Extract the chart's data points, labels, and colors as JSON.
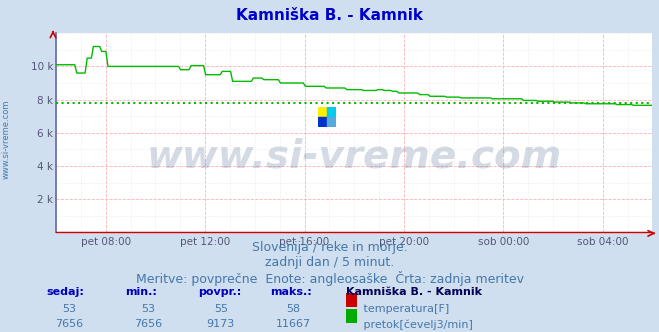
{
  "title": "Kamniška B. - Kamnik",
  "title_color": "#0000cc",
  "bg_color": "#d0dff0",
  "plot_bg_color": "#ffffff",
  "grid_color_red": "#ffaaaa",
  "grid_color_light": "#eeeeee",
  "x_tick_labels": [
    "pet 08:00",
    "pet 12:00",
    "pet 16:00",
    "pet 20:00",
    "sob 00:00",
    "sob 04:00"
  ],
  "ylim": [
    0,
    12000
  ],
  "ytick_vals": [
    2000,
    4000,
    6000,
    8000,
    10000
  ],
  "ytick_labels": [
    "2 k",
    "4 k",
    "6 k",
    "8 k",
    "10 k"
  ],
  "avg_line_value": 7800,
  "avg_line_color": "#00bb00",
  "line_color_green": "#00bb00",
  "line_color_red": "#cc0000",
  "spine_color": "#cc0000",
  "left_spine_color": "#6666aa",
  "watermark_text": "www.si-vreme.com",
  "watermark_color": "#1a3a6a",
  "watermark_alpha": 0.18,
  "watermark_fontsize": 28,
  "subtitle1": "Slovenija / reke in morje.",
  "subtitle2": "zadnji dan / 5 minut.",
  "subtitle3": "Meritve: povprečne  Enote: angleosaške  Črta: zadnja meritev",
  "subtitle_color": "#4477aa",
  "subtitle_fontsize": 9,
  "footer_header_color": "#0000bb",
  "footer_value_color": "#4477aa",
  "footer_station_color": "#000055",
  "temp_color": "#cc0000",
  "flow_color": "#00aa00",
  "station_label": "Kamniška B. - Kamnik",
  "temp_label": "temperatura[F]",
  "flow_label": "pretok[čevelj3/min]",
  "sedaj_temp": 53,
  "min_temp": 53,
  "povpr_temp": 55,
  "maks_temp": 58,
  "sedaj_flow": 7656,
  "min_flow": 7656,
  "povpr_flow": 9173,
  "maks_flow": 11667,
  "ylabel_text": "www.si-vreme.com",
  "ylabel_color": "#4477aa",
  "ylabel_fontsize": 6
}
